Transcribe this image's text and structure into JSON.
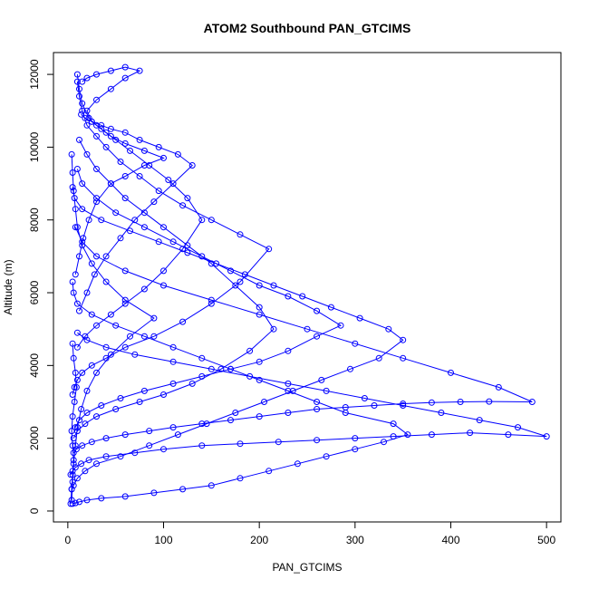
{
  "chart_data": {
    "type": "line",
    "title": "ATOM2 Southbound PAN_GTCIMS",
    "xlabel": "PAN_GTCIMS",
    "ylabel": "Altitude (m)",
    "xlim": [
      -15,
      515
    ],
    "ylim": [
      -300,
      12600
    ],
    "x_ticks": [
      0,
      100,
      200,
      300,
      400,
      500
    ],
    "y_ticks": [
      0,
      2000,
      4000,
      6000,
      8000,
      10000,
      12000
    ],
    "grid": false,
    "legend": "none",
    "marker": "open circle",
    "color": "#0000ff",
    "series": [
      {
        "x": [
          5,
          8,
          12,
          20,
          35,
          60,
          90,
          120,
          150,
          180,
          210,
          240,
          270,
          300,
          330,
          355,
          340,
          290,
          260,
          230,
          200,
          170,
          140,
          110,
          80,
          50,
          25,
          10,
          6,
          5
        ],
        "y": [
          200,
          220,
          250,
          300,
          350,
          400,
          500,
          600,
          700,
          900,
          1100,
          1300,
          1500,
          1700,
          1900,
          2100,
          2400,
          2700,
          3000,
          3300,
          3600,
          3900,
          4200,
          4500,
          4800,
          5100,
          5400,
          5700,
          6000,
          6300
        ]
      },
      {
        "x": [
          4,
          6,
          10,
          18,
          30,
          55,
          85,
          115,
          145,
          175,
          205,
          235,
          265,
          295,
          325,
          350,
          335,
          305,
          275,
          245,
          215,
          185,
          155,
          125,
          95,
          65,
          35,
          15,
          7,
          5
        ],
        "y": [
          600,
          700,
          900,
          1100,
          1300,
          1500,
          1800,
          2100,
          2400,
          2700,
          3000,
          3300,
          3600,
          3900,
          4200,
          4700,
          5000,
          5300,
          5600,
          5900,
          6200,
          6500,
          6800,
          7100,
          7400,
          7700,
          8000,
          8300,
          8600,
          8900
        ]
      },
      {
        "x": [
          3,
          5,
          8,
          14,
          22,
          40,
          70,
          100,
          140,
          180,
          220,
          260,
          300,
          340,
          380,
          420,
          460,
          500,
          470,
          430,
          390,
          350,
          310,
          270,
          230,
          190,
          150,
          110,
          70,
          40,
          20,
          10
        ],
        "y": [
          1000,
          1100,
          1200,
          1300,
          1400,
          1500,
          1600,
          1700,
          1800,
          1850,
          1900,
          1950,
          2000,
          2050,
          2100,
          2150,
          2100,
          2050,
          2300,
          2500,
          2700,
          2900,
          3100,
          3300,
          3500,
          3700,
          3900,
          4100,
          4300,
          4500,
          4700,
          4900
        ]
      },
      {
        "x": [
          6,
          9,
          15,
          25,
          40,
          60,
          85,
          110,
          140,
          170,
          200,
          230,
          260,
          290,
          320,
          350,
          380,
          410,
          440,
          485,
          450,
          400,
          350,
          300,
          250,
          200,
          150,
          100,
          60,
          30,
          15,
          8
        ],
        "y": [
          1600,
          1700,
          1800,
          1900,
          2000,
          2100,
          2200,
          2300,
          2400,
          2500,
          2600,
          2700,
          2800,
          2850,
          2900,
          2950,
          2980,
          3000,
          3010,
          3000,
          3400,
          3800,
          4200,
          4600,
          5000,
          5400,
          5800,
          6200,
          6600,
          7000,
          7400,
          7800
        ]
      },
      {
        "x": [
          8,
          12,
          20,
          35,
          55,
          80,
          110,
          140,
          170,
          200,
          230,
          260,
          285,
          260,
          230,
          200,
          170,
          140,
          110,
          80,
          50,
          30,
          15,
          10
        ],
        "y": [
          2300,
          2500,
          2700,
          2900,
          3100,
          3300,
          3500,
          3700,
          3900,
          4100,
          4400,
          4800,
          5100,
          5500,
          5900,
          6200,
          6600,
          7000,
          7400,
          7800,
          8200,
          8600,
          9000,
          9400
        ]
      },
      {
        "x": [
          5,
          7,
          10,
          15,
          25,
          40,
          60,
          90,
          120,
          150,
          180,
          210,
          180,
          150,
          120,
          95,
          75,
          55,
          40,
          30,
          20,
          15,
          12,
          10
        ],
        "y": [
          3200,
          3400,
          3600,
          3800,
          4000,
          4200,
          4500,
          4800,
          5200,
          5700,
          6300,
          7200,
          7600,
          8000,
          8400,
          8800,
          9200,
          9600,
          10000,
          10300,
          10600,
          11000,
          11400,
          11800
        ]
      },
      {
        "x": [
          10,
          18,
          30,
          45,
          60,
          80,
          100,
          120,
          140,
          125,
          105,
          85,
          65,
          50,
          40,
          30,
          22,
          15,
          12,
          10
        ],
        "y": [
          4500,
          4800,
          5100,
          5400,
          5700,
          6100,
          6600,
          7200,
          8000,
          8600,
          9100,
          9500,
          9900,
          10200,
          10400,
          10600,
          10800,
          11200,
          11600,
          12000
        ]
      },
      {
        "x": [
          12,
          20,
          28,
          40,
          55,
          70,
          90,
          110,
          130,
          115,
          95,
          75,
          60,
          45,
          35,
          25,
          18,
          14
        ],
        "y": [
          5500,
          6000,
          6500,
          7000,
          7500,
          8000,
          8500,
          9000,
          9500,
          9800,
          10000,
          10200,
          10400,
          10500,
          10600,
          10700,
          10800,
          10900
        ]
      },
      {
        "x": [
          8,
          12,
          16,
          22,
          30,
          45,
          60,
          80,
          100,
          80,
          60,
          45,
          35,
          25,
          20,
          30,
          45,
          60,
          75,
          60,
          45,
          30,
          20,
          15
        ],
        "y": [
          6500,
          7000,
          7500,
          8000,
          8500,
          9000,
          9200,
          9500,
          9700,
          9900,
          10100,
          10300,
          10500,
          10700,
          11000,
          11300,
          11600,
          11900,
          12100,
          12200,
          12100,
          12000,
          11900,
          11800
        ]
      },
      {
        "x": [
          4,
          5,
          6,
          8,
          10,
          14,
          20,
          30,
          45,
          65,
          90,
          60,
          40,
          25,
          15,
          10,
          8,
          6,
          5,
          4
        ],
        "y": [
          300,
          800,
          1300,
          1800,
          2300,
          2800,
          3300,
          3800,
          4300,
          4800,
          5300,
          5800,
          6300,
          6800,
          7300,
          7800,
          8300,
          8800,
          9300,
          9800
        ]
      },
      {
        "x": [
          6,
          10,
          18,
          30,
          50,
          75,
          100,
          130,
          160,
          190,
          215,
          200,
          175,
          150,
          125,
          100,
          80,
          60,
          45,
          30,
          20,
          12
        ],
        "y": [
          2000,
          2200,
          2400,
          2600,
          2800,
          3000,
          3200,
          3500,
          3900,
          4400,
          5000,
          5600,
          6200,
          6800,
          7300,
          7800,
          8200,
          8600,
          9000,
          9400,
          9800,
          10200
        ]
      },
      {
        "x": [
          3,
          4,
          5,
          6,
          5,
          4,
          5,
          7,
          9,
          8,
          6,
          5
        ],
        "y": [
          200,
          600,
          1000,
          1400,
          1800,
          2200,
          2600,
          3000,
          3400,
          3800,
          4200,
          4600
        ]
      }
    ]
  }
}
